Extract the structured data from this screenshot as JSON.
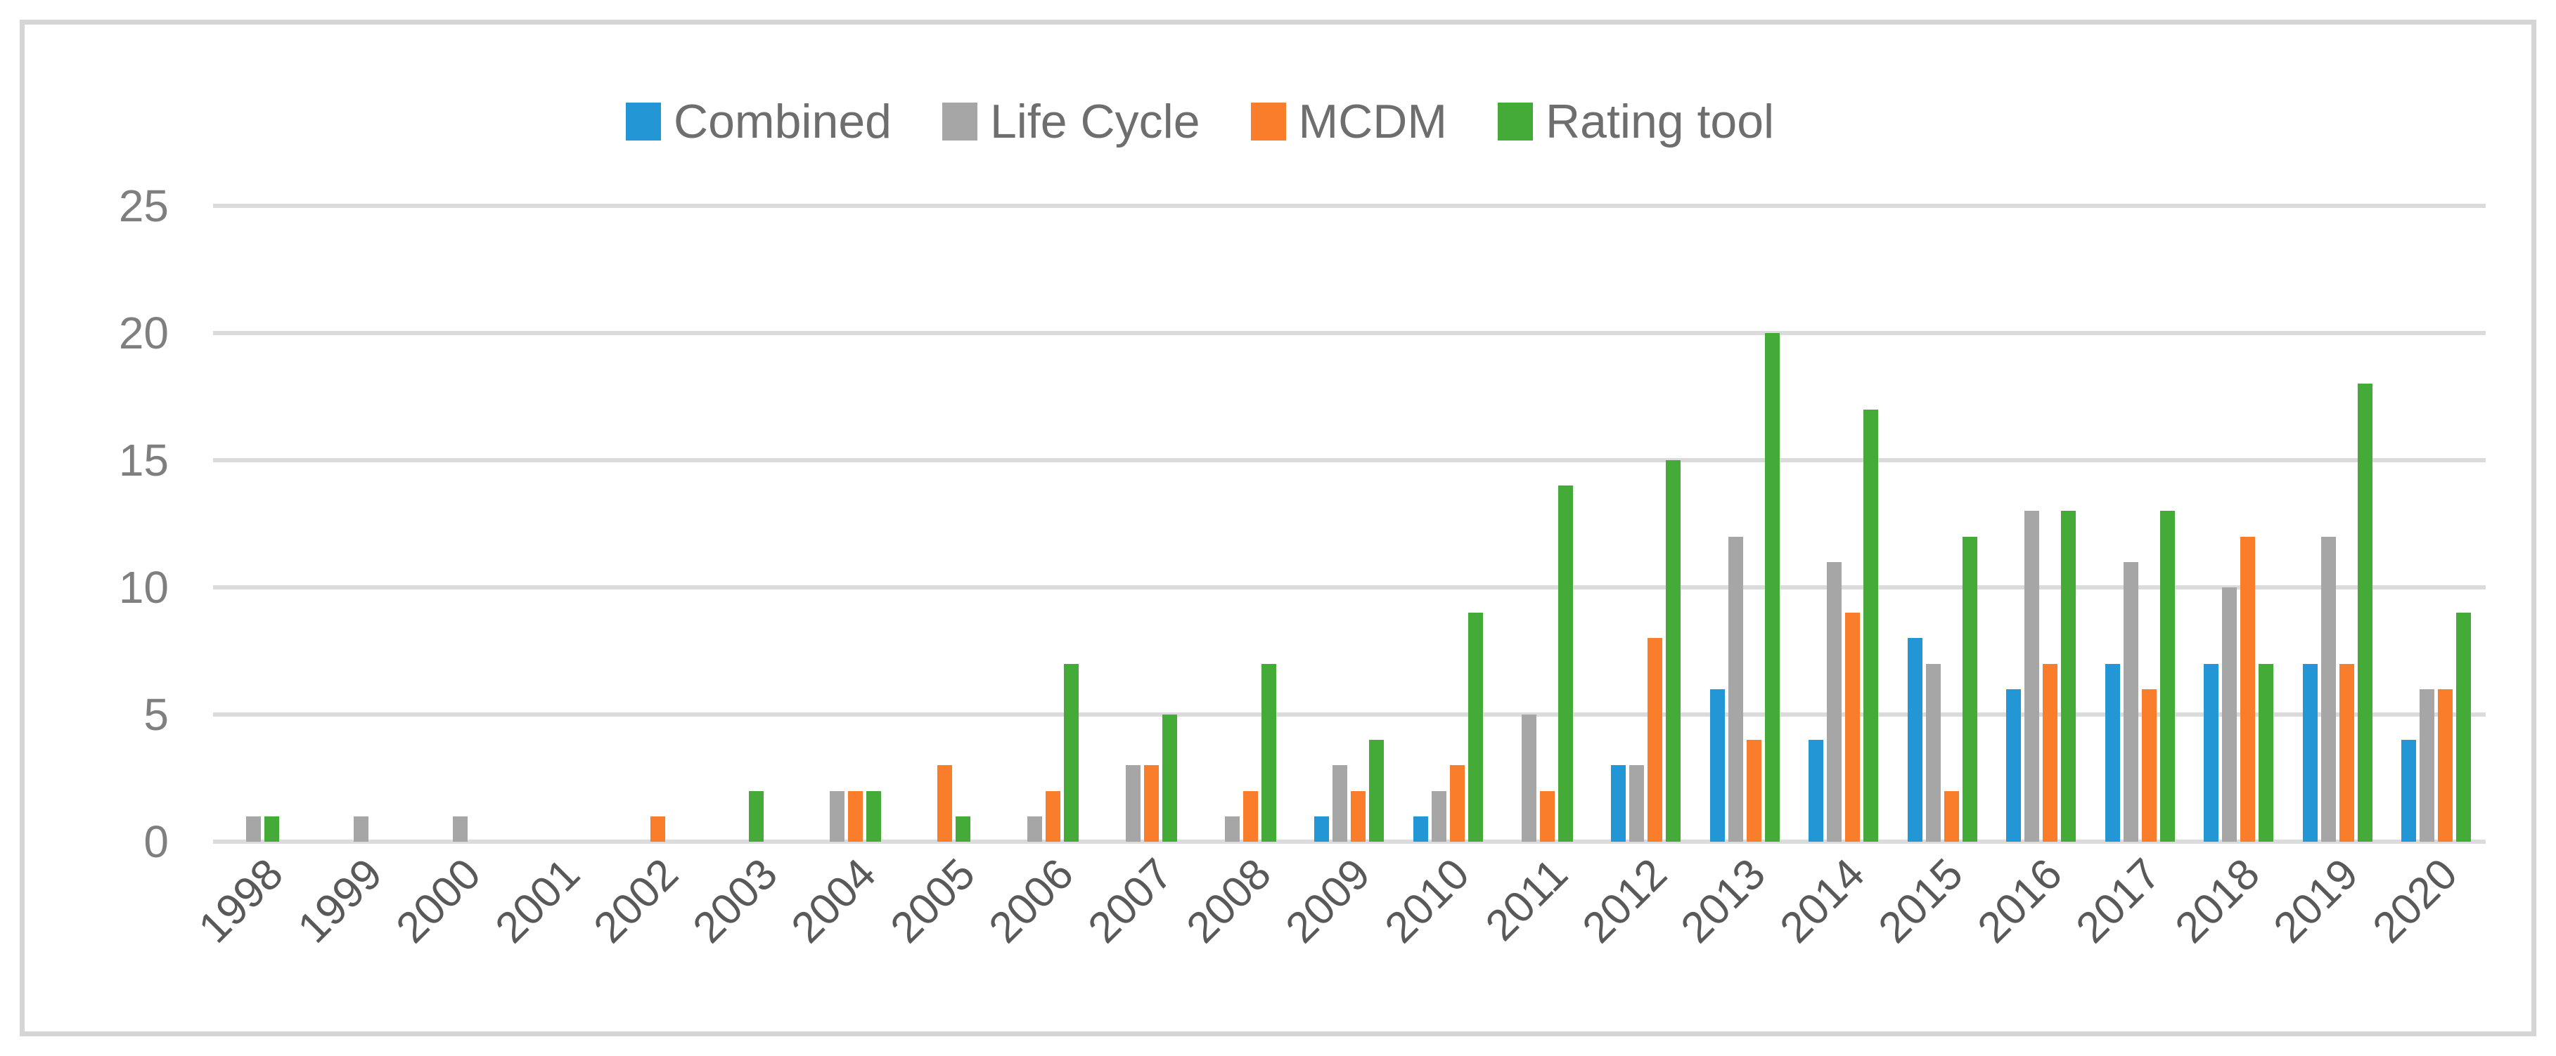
{
  "figure": {
    "background": "#ffffff",
    "border_color": "#d5d5d5",
    "gridline_color": "#dbdbdb",
    "y_label_color": "#7f7f7f",
    "x_label_color": "#595959",
    "legend_text_color": "#6e6e6e"
  },
  "chart_data": {
    "type": "bar",
    "title": "",
    "xlabel": "",
    "ylabel": "",
    "categories": [
      "1998",
      "1999",
      "2000",
      "2001",
      "2002",
      "2003",
      "2004",
      "2005",
      "2006",
      "2007",
      "2008",
      "2009",
      "2010",
      "2011",
      "2012",
      "2013",
      "2014",
      "2015",
      "2016",
      "2017",
      "2018",
      "2019",
      "2020"
    ],
    "series": [
      {
        "name": "Combined",
        "color": "#2397d5",
        "values": [
          0,
          0,
          0,
          0,
          0,
          0,
          0,
          0,
          0,
          0,
          0,
          1,
          1,
          0,
          3,
          6,
          4,
          8,
          6,
          7,
          7,
          7,
          4
        ]
      },
      {
        "name": "Life Cycle",
        "color": "#a6a6a6",
        "values": [
          1,
          1,
          1,
          0,
          0,
          0,
          2,
          0,
          1,
          3,
          1,
          3,
          2,
          5,
          3,
          12,
          11,
          7,
          13,
          11,
          10,
          12,
          6
        ]
      },
      {
        "name": "MCDM",
        "color": "#f97d2b",
        "values": [
          0,
          0,
          0,
          0,
          1,
          0,
          2,
          3,
          2,
          3,
          2,
          2,
          3,
          2,
          8,
          4,
          9,
          2,
          7,
          6,
          12,
          7,
          6
        ]
      },
      {
        "name": "Rating tool",
        "color": "#45ab38",
        "values": [
          1,
          0,
          0,
          0,
          0,
          2,
          2,
          1,
          7,
          5,
          7,
          4,
          9,
          14,
          15,
          20,
          17,
          12,
          13,
          13,
          7,
          18,
          9
        ]
      }
    ],
    "ylim": [
      0,
      25
    ],
    "yticks": [
      "0",
      "5",
      "10",
      "15",
      "20",
      "25"
    ],
    "grid": true,
    "legend_position": "top-center"
  }
}
